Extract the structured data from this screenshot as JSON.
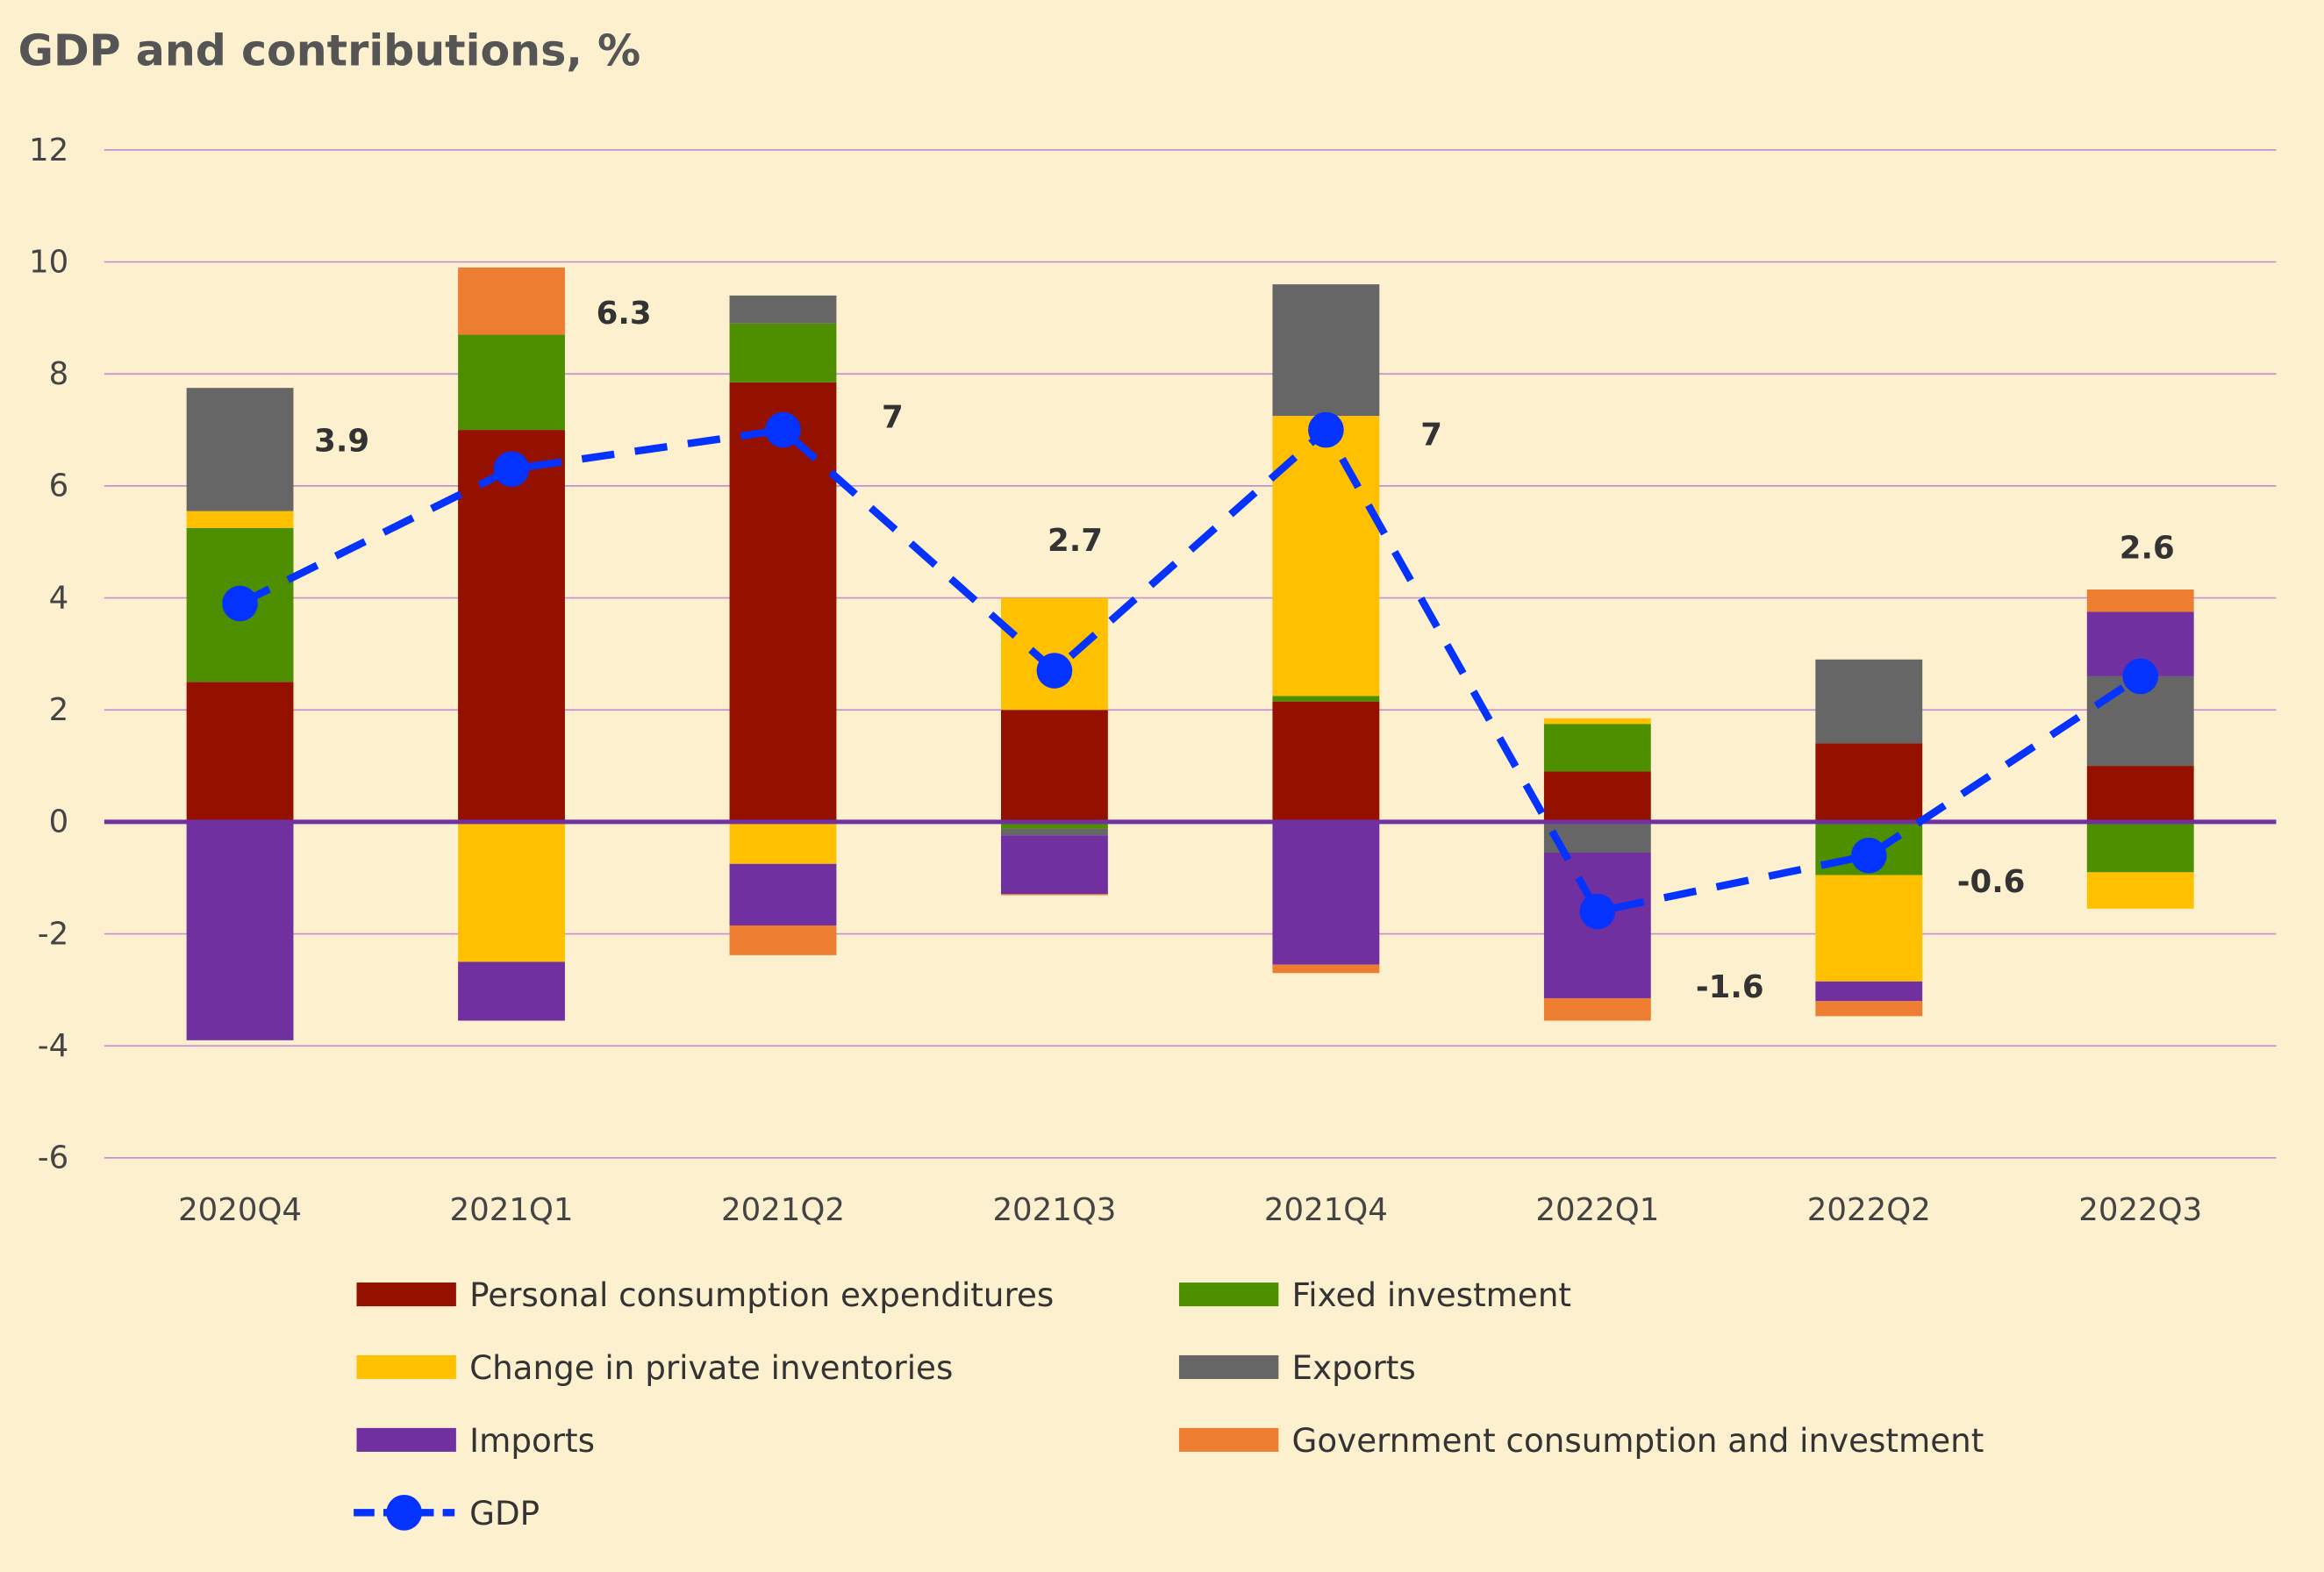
{
  "chart_data": {
    "type": "bar",
    "stacked": true,
    "title": "GDP and contributions, %",
    "xlabel": "",
    "ylabel": "",
    "ylim": [
      -6,
      12
    ],
    "yticks": [
      12,
      10,
      8,
      6,
      4,
      2,
      0,
      -2,
      -4,
      -6
    ],
    "grid": true,
    "legend_position": "bottom",
    "categories": [
      "2020Q4",
      "2021Q1",
      "2021Q2",
      "2021Q3",
      "2021Q4",
      "2022Q1",
      "2022Q2",
      "2022Q3"
    ],
    "series": [
      {
        "name": "Personal consumption expenditures",
        "color": "#941100",
        "values": [
          2.5,
          7.0,
          7.85,
          2.0,
          2.15,
          0.9,
          1.4,
          1.0
        ]
      },
      {
        "name": "Fixed investment",
        "color": "#4e8f00",
        "values": [
          2.75,
          1.7,
          1.05,
          -0.12,
          0.1,
          0.85,
          -0.95,
          -0.9
        ]
      },
      {
        "name": "Change in private inventories",
        "color": "#ffc000",
        "values": [
          0.3,
          -2.5,
          -0.75,
          2.0,
          5.0,
          0.1,
          -1.9,
          -0.65
        ]
      },
      {
        "name": "Exports",
        "color": "#666666",
        "values": [
          2.2,
          0,
          0.5,
          -0.12,
          2.35,
          -0.55,
          1.5,
          1.6
        ]
      },
      {
        "name": "Imports",
        "color": "#7030a0",
        "values": [
          -3.9,
          -1.05,
          -1.1,
          -1.05,
          -2.55,
          -2.6,
          -0.35,
          1.15
        ]
      },
      {
        "name": "Government consumption and investment",
        "color": "#ed7d31",
        "values": [
          0,
          1.2,
          -0.53,
          -0.02,
          -0.15,
          -0.4,
          -0.27,
          0.4
        ]
      }
    ],
    "line": {
      "name": "GDP",
      "color": "#0433ff",
      "values": [
        3.9,
        6.3,
        7,
        2.7,
        7,
        -1.6,
        -0.6,
        2.6
      ],
      "labels": [
        "3.9",
        "6.3",
        "7",
        "2.7",
        "7",
        "-1.6",
        "-0.6",
        "2.6"
      ]
    }
  }
}
